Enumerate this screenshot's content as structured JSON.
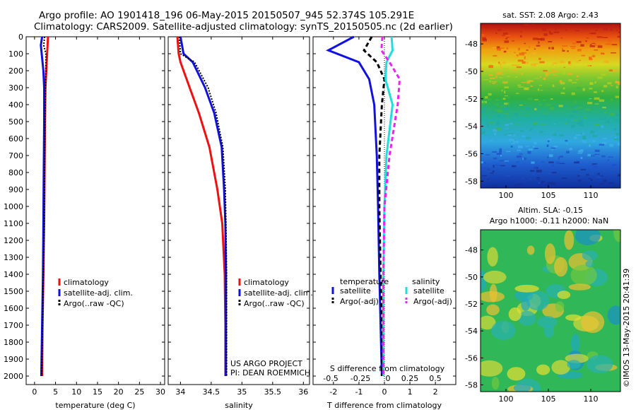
{
  "title": {
    "line1": "Argo profile: AO 1901418_196 06-May-2015 20150507_945 52.374S 105.291E",
    "line2": "Climatology: CARS2009. Satellite-adjusted climatology: synTS_20150505.nc (2d earlier)"
  },
  "colors": {
    "climatology": "#ee1111",
    "satellite": "#1111dd",
    "argo": "#000000",
    "salinity_satellite": "#22dddd",
    "salinity_argo": "#ee22ee"
  },
  "depth_axis": {
    "range": [
      0,
      2050
    ],
    "ticks": [
      0,
      100,
      200,
      300,
      400,
      500,
      600,
      700,
      800,
      900,
      1000,
      1100,
      1200,
      1300,
      1400,
      1500,
      1600,
      1700,
      1800,
      1900,
      2000
    ]
  },
  "chart_data": [
    {
      "type": "line",
      "id": "temperature",
      "xlabel": "temperature (deg C)",
      "xlim": [
        -2,
        31
      ],
      "xticks": [
        0,
        5,
        10,
        15,
        20,
        25,
        30
      ],
      "ylim": [
        0,
        2050
      ],
      "legend": [
        "climatology",
        "satellite-adj. clim.",
        "Argo(..raw -QC)"
      ],
      "series": [
        {
          "name": "climatology",
          "x": [
            3.2,
            3.1,
            3.0,
            2.8,
            2.6,
            2.5,
            2.4,
            2.3,
            2.1,
            1.9,
            1.8
          ],
          "y": [
            0,
            50,
            100,
            200,
            300,
            500,
            800,
            1100,
            1400,
            1700,
            2000
          ]
        },
        {
          "name": "satellite-adj. clim.",
          "x": [
            1.8,
            1.5,
            1.7,
            2.1,
            2.3,
            2.3,
            2.2,
            2.1,
            2.0,
            1.8,
            1.6
          ],
          "y": [
            0,
            50,
            100,
            200,
            300,
            500,
            800,
            1100,
            1400,
            1700,
            2000
          ]
        },
        {
          "name": "Argo(..raw -QC)",
          "x": [
            2.4,
            2.2,
            2.7,
            2.7,
            2.6,
            2.5,
            2.4,
            2.3,
            2.1,
            1.9,
            1.7
          ],
          "y": [
            0,
            50,
            100,
            200,
            300,
            500,
            800,
            1100,
            1400,
            1700,
            2000
          ]
        }
      ]
    },
    {
      "type": "line",
      "id": "salinity",
      "xlabel": "salinity",
      "xlim": [
        33.8,
        36.1
      ],
      "xticks": [
        34,
        34.5,
        35,
        35.5,
        36
      ],
      "ylim": [
        0,
        2050
      ],
      "legend": [
        "climatology",
        "satellite-adj. clim.",
        "Argo(..raw -QC)"
      ],
      "annotation": [
        "US ARGO PROJECT",
        "PI: DEAN ROEMMICH"
      ],
      "series": [
        {
          "name": "climatology",
          "x": [
            33.95,
            33.97,
            34.0,
            34.15,
            34.3,
            34.47,
            34.6,
            34.68,
            34.72,
            34.73,
            34.73
          ],
          "y": [
            0,
            100,
            150,
            300,
            450,
            650,
            900,
            1100,
            1400,
            1700,
            2000
          ]
        },
        {
          "name": "satellite-adj. clim.",
          "x": [
            34.0,
            34.05,
            34.2,
            34.4,
            34.55,
            34.67,
            34.71,
            34.73,
            34.74,
            34.74,
            34.74
          ],
          "y": [
            0,
            100,
            150,
            300,
            450,
            650,
            900,
            1100,
            1400,
            1700,
            2000
          ]
        },
        {
          "name": "Argo(..raw -QC)",
          "x": [
            33.98,
            34.0,
            34.23,
            34.45,
            34.58,
            34.69,
            34.73,
            34.74,
            34.75,
            34.75,
            34.75
          ],
          "y": [
            0,
            100,
            150,
            300,
            450,
            650,
            900,
            1100,
            1400,
            1700,
            2000
          ]
        }
      ]
    },
    {
      "type": "line",
      "id": "differences",
      "xlabel": "T difference from climatology",
      "xlabel_top": "S difference from climatology",
      "xlim": [
        -2.8,
        2.8
      ],
      "xticks_T": [
        -2,
        -1,
        0,
        1,
        2
      ],
      "xticks_S": [
        -0.5,
        -0.25,
        0,
        0.25,
        0.5
      ],
      "ylim": [
        0,
        2050
      ],
      "legend_titles": [
        "temperature",
        "salinity"
      ],
      "legend": [
        "satellite",
        "Argo(-adj)",
        "satellite",
        "Argo(-adj)"
      ],
      "series": [
        {
          "name": "temperature satellite",
          "x": [
            -1.2,
            -2.2,
            -1.0,
            -0.6,
            -0.4,
            -0.3,
            -0.25,
            -0.2,
            -0.15,
            -0.1
          ],
          "y": [
            0,
            80,
            150,
            250,
            400,
            700,
            1000,
            1400,
            1700,
            2000
          ]
        },
        {
          "name": "temperature Argo(-adj)",
          "x": [
            -0.5,
            -0.8,
            -0.3,
            0.0,
            -0.1,
            -0.2,
            -0.2,
            -0.15,
            -0.1,
            -0.1
          ],
          "y": [
            0,
            80,
            150,
            250,
            400,
            700,
            1000,
            1400,
            1700,
            2000
          ]
        },
        {
          "name": "salinity satellite",
          "x": [
            0.07,
            0.08,
            0.02,
            0.01,
            0.08,
            0.02,
            0.0,
            -0.01,
            -0.01,
            -0.01
          ],
          "y": [
            0,
            80,
            150,
            250,
            400,
            700,
            1000,
            1400,
            1700,
            2000
          ]
        },
        {
          "name": "salinity Argo(-adj)",
          "x": [
            -0.02,
            -0.03,
            0.05,
            0.15,
            0.13,
            0.05,
            0.0,
            -0.01,
            -0.01,
            -0.01
          ],
          "y": [
            0,
            80,
            150,
            250,
            400,
            700,
            1000,
            1400,
            1700,
            2000
          ]
        }
      ]
    },
    {
      "type": "heatmap",
      "id": "sst_map",
      "title": "sat. SST: 2.08 Argo: 2.43",
      "xticks": [
        100,
        105,
        110
      ],
      "yticks": [
        -48,
        -50,
        -52,
        -54,
        -56,
        -58
      ],
      "xlim": [
        97,
        113.5
      ],
      "ylim": [
        -58.5,
        -46.5
      ]
    },
    {
      "type": "heatmap",
      "id": "sla_map",
      "title": "Altim. SLA: -0.15",
      "subtitle": "Argo h1000: -0.11 h2000: NaN",
      "xticks": [
        100,
        105,
        110
      ],
      "yticks": [
        -48,
        -50,
        -52,
        -54,
        -56,
        -58
      ],
      "xlim": [
        97,
        113.5
      ],
      "ylim": [
        -58.5,
        -46.5
      ]
    }
  ],
  "credit": "©IMOS 13-May-2015 20:41:39"
}
